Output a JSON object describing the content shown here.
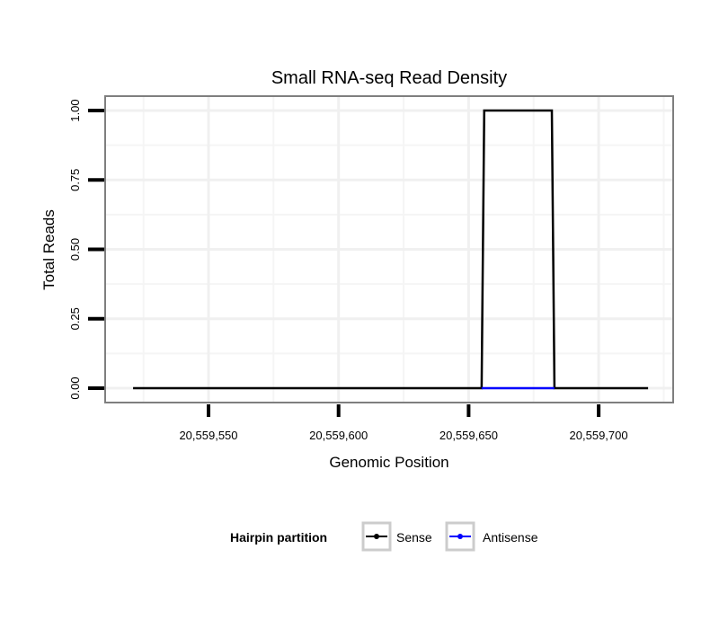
{
  "chart_data": {
    "type": "line",
    "title": "Small RNA-seq Read Density",
    "xlabel": "Genomic Position",
    "ylabel": "Total Reads",
    "xlim": [
      20559513,
      20559723
    ],
    "ylim": [
      -0.05,
      1.05
    ],
    "x_ticks": [
      20559550,
      20559600,
      20559650,
      20559700
    ],
    "x_tick_labels": [
      "20,559,550",
      "20,559,600",
      "20,559,650",
      "20,559,700"
    ],
    "y_ticks": [
      0,
      0.25,
      0.5,
      0.75,
      1.0
    ],
    "y_tick_labels": [
      "0.00",
      "0.25",
      "0.50",
      "0.75",
      "1.00"
    ],
    "grid": true,
    "legend": {
      "title": "Hairpin partition",
      "placement": "bottom"
    },
    "series": [
      {
        "name": "Sense",
        "color": "#000000",
        "x": [
          20559521,
          20559655,
          20559656,
          20559682,
          20559683,
          20559719
        ],
        "y": [
          0,
          0,
          1,
          1,
          0,
          0
        ]
      },
      {
        "name": "Antisense",
        "color": "#0000ff",
        "x": [
          20559655,
          20559683
        ],
        "y": [
          0,
          0
        ]
      }
    ]
  }
}
